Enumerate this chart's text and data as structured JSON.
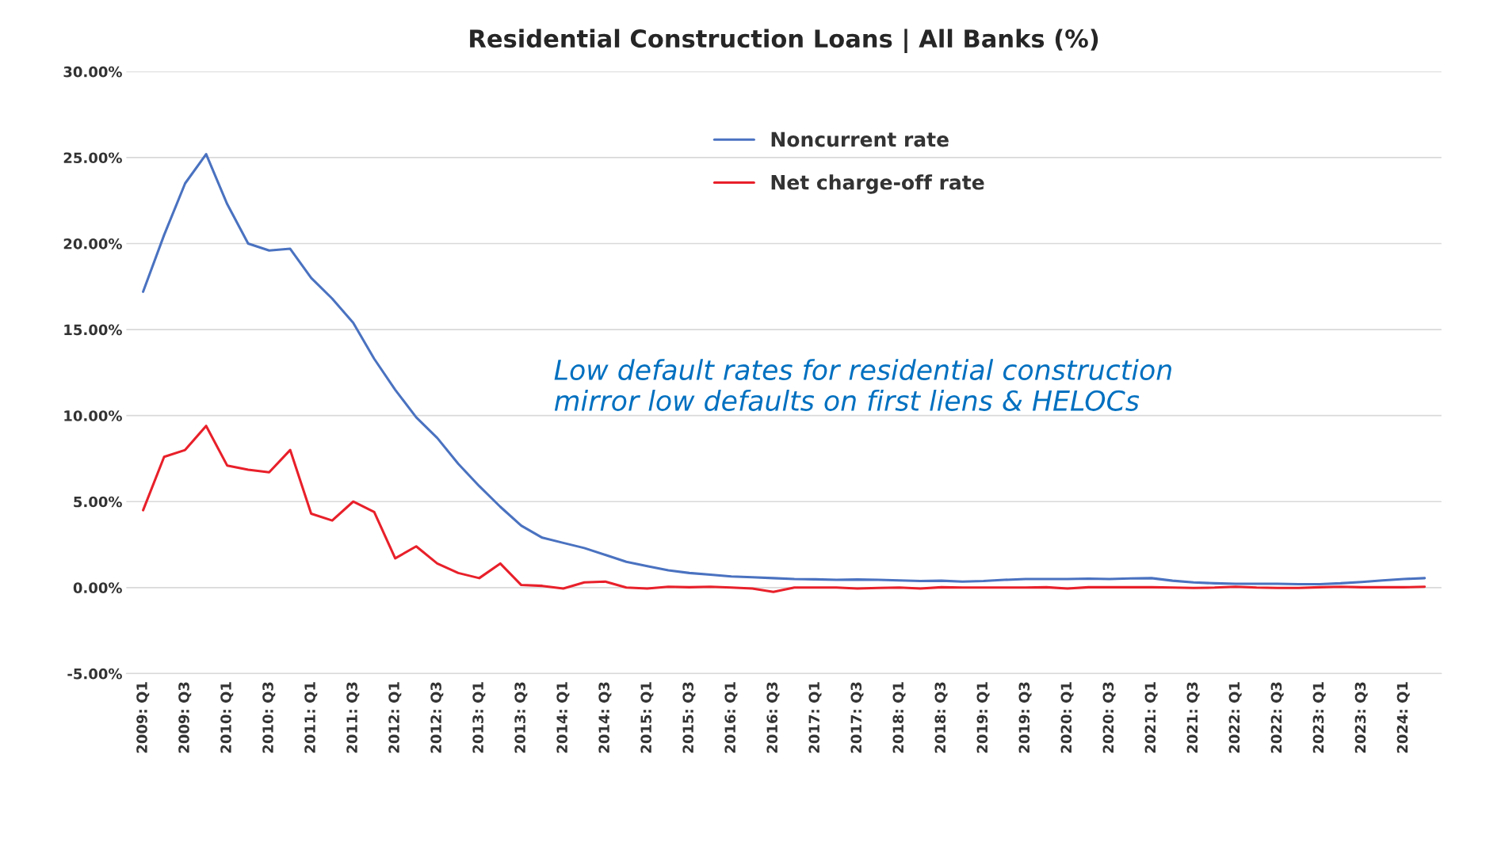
{
  "chart_data": {
    "type": "line",
    "title": "Residential Construction Loans | All Banks (%)",
    "categories": [
      "2009: Q1",
      null,
      "2009: Q3",
      null,
      "2010: Q1",
      null,
      "2010: Q3",
      null,
      "2011: Q1",
      null,
      "2011: Q3",
      null,
      "2012: Q1",
      null,
      "2012: Q3",
      null,
      "2013: Q1",
      null,
      "2013: Q3",
      null,
      "2014: Q1",
      null,
      "2014: Q3",
      null,
      "2015: Q1",
      null,
      "2015: Q3",
      null,
      "2016: Q1",
      null,
      "2016: Q3",
      null,
      "2017: Q1",
      null,
      "2017: Q3",
      null,
      "2018: Q1",
      null,
      "2018: Q3",
      null,
      "2019: Q1",
      null,
      "2019: Q3",
      null,
      "2020: Q1",
      null,
      "2020: Q3",
      null,
      "2021: Q1",
      null,
      "2021: Q3",
      null,
      "2022: Q1",
      null,
      "2022: Q3",
      null,
      "2023: Q1",
      null,
      "2023: Q3",
      null,
      "2024: Q1",
      null
    ],
    "series": [
      {
        "name": "Noncurrent rate",
        "color": "#4a72c0",
        "values": [
          17.2,
          20.5,
          23.5,
          25.2,
          22.3,
          20.0,
          19.6,
          19.7,
          18.0,
          16.8,
          15.4,
          13.3,
          11.5,
          9.9,
          8.7,
          7.2,
          5.9,
          4.7,
          3.6,
          2.9,
          2.6,
          2.3,
          1.9,
          1.5,
          1.25,
          1.0,
          0.85,
          0.75,
          0.65,
          0.6,
          0.55,
          0.5,
          0.48,
          0.45,
          0.47,
          0.45,
          0.42,
          0.38,
          0.4,
          0.35,
          0.38,
          0.45,
          0.5,
          0.5,
          0.5,
          0.52,
          0.5,
          0.53,
          0.55,
          0.4,
          0.3,
          0.25,
          0.22,
          0.22,
          0.22,
          0.2,
          0.2,
          0.25,
          0.33,
          0.42,
          0.5,
          0.55
        ]
      },
      {
        "name": "Net charge-off rate",
        "color": "#e8202a",
        "values": [
          4.5,
          7.6,
          8.0,
          9.4,
          7.1,
          6.85,
          6.7,
          8.0,
          4.3,
          3.9,
          5.0,
          4.4,
          1.7,
          2.4,
          1.4,
          0.85,
          0.55,
          1.4,
          0.15,
          0.1,
          -0.05,
          0.3,
          0.35,
          0.0,
          -0.05,
          0.05,
          0.02,
          0.05,
          0.0,
          -0.05,
          -0.25,
          0.0,
          0.0,
          0.0,
          -0.05,
          -0.02,
          0.0,
          -0.05,
          0.02,
          0.0,
          0.0,
          0.0,
          0.0,
          0.02,
          -0.05,
          0.02,
          0.02,
          0.02,
          0.02,
          0.0,
          -0.02,
          0.0,
          0.05,
          0.0,
          -0.02,
          -0.02,
          0.02,
          0.05,
          0.02,
          0.02,
          0.02,
          0.05
        ]
      }
    ],
    "ylim": [
      -5,
      30
    ],
    "yticks": [
      {
        "value": -5,
        "label": "-5.00%"
      },
      {
        "value": 0,
        "label": "0.00%"
      },
      {
        "value": 5,
        "label": "5.00%"
      },
      {
        "value": 10,
        "label": "10.00%"
      },
      {
        "value": 15,
        "label": "15.00%"
      },
      {
        "value": 20,
        "label": "20.00%"
      },
      {
        "value": 25,
        "label": "25.00%"
      },
      {
        "value": 30,
        "label": "30.00%"
      }
    ],
    "grid": "y",
    "legend": "top",
    "marker": "none",
    "line_style": "solid",
    "annotations": [
      "Low default rates for residential construction\nmirror low defaults on first liens & HELOCs"
    ]
  }
}
